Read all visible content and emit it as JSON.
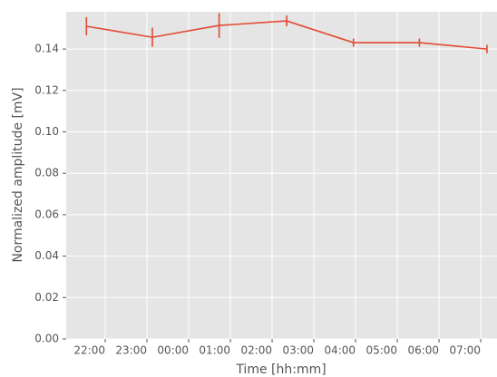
{
  "chart_data": {
    "type": "errorbar-line",
    "xlabel": "Time [hh:mm]",
    "ylabel": "Normalized amplitude [mV]",
    "x": [
      21.55,
      23.13,
      24.73,
      26.35,
      27.95,
      29.53,
      31.15
    ],
    "values": [
      0.151,
      0.1457,
      0.1514,
      0.1536,
      0.1431,
      0.1431,
      0.14
    ],
    "errors": [
      0.0044,
      0.0046,
      0.006,
      0.0026,
      0.002,
      0.002,
      0.002
    ],
    "color": "#e24a33",
    "xlim": [
      21.065,
      31.39
    ],
    "xticks": [
      {
        "value": 22,
        "label": "22:00"
      },
      {
        "value": 23,
        "label": "23:00"
      },
      {
        "value": 24,
        "label": "00:00"
      },
      {
        "value": 25,
        "label": "01:00"
      },
      {
        "value": 26,
        "label": "02:00"
      },
      {
        "value": 27,
        "label": "03:00"
      },
      {
        "value": 28,
        "label": "04:00"
      },
      {
        "value": 29,
        "label": "05:00"
      },
      {
        "value": 30,
        "label": "06:00"
      },
      {
        "value": 31,
        "label": "07:00"
      }
    ],
    "ylim": [
      0,
      0.158
    ],
    "yticks": [
      {
        "value": 0,
        "label": "0.00"
      },
      {
        "value": 0.02,
        "label": "0.02"
      },
      {
        "value": 0.04,
        "label": "0.04"
      },
      {
        "value": 0.06,
        "label": "0.06"
      },
      {
        "value": 0.08,
        "label": "0.08"
      },
      {
        "value": 0.1,
        "label": "0.10"
      },
      {
        "value": 0.12,
        "label": "0.12"
      },
      {
        "value": 0.14,
        "label": "0.14"
      }
    ],
    "grid": true
  }
}
